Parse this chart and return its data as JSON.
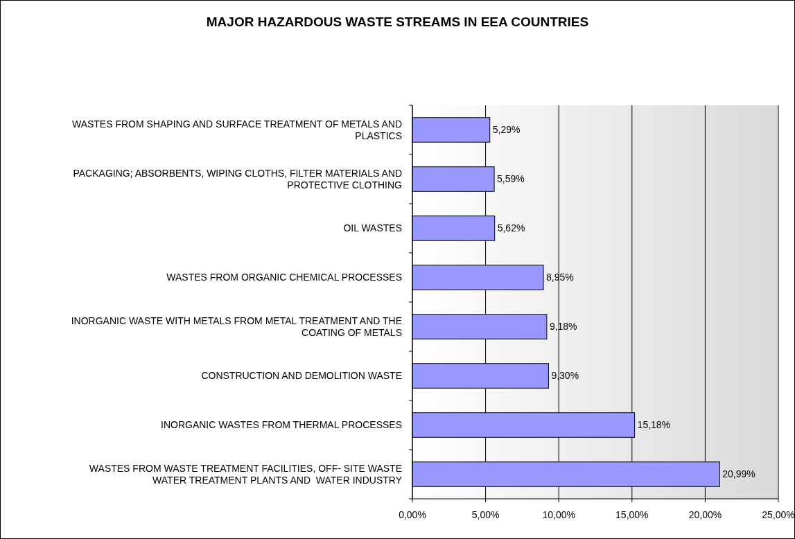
{
  "chart_data": {
    "type": "bar",
    "orientation": "horizontal",
    "title": "MAJOR HAZARDOUS WASTE STREAMS IN EEA COUNTRIES",
    "categories": [
      "WASTES FROM SHAPING AND SURFACE TREATMENT OF METALS AND PLASTICS",
      "PACKAGING; ABSORBENTS, WIPING CLOTHS, FILTER MATERIALS AND PROTECTIVE CLOTHING",
      "OIL WASTES",
      "WASTES FROM ORGANIC CHEMICAL PROCESSES",
      "INORGANIC WASTE WITH METALS FROM METAL TREATMENT AND THE COATING OF METALS",
      "CONSTRUCTION AND DEMOLITION WASTE",
      "INORGANIC WASTES FROM THERMAL PROCESSES",
      "WASTES FROM WASTE TREATMENT FACILITIES, OFF- SITE WASTE WATER TREATMENT PLANTS AND  WATER INDUSTRY"
    ],
    "values": [
      5.29,
      5.59,
      5.62,
      8.95,
      9.18,
      9.3,
      15.18,
      20.99
    ],
    "value_labels": [
      "5,29%",
      "5,59%",
      "5,62%",
      "8,95%",
      "9,18%",
      "9,30%",
      "15,18%",
      "20,99%"
    ],
    "color": "#9999ff",
    "xlim": [
      0,
      25
    ],
    "xticks": [
      {
        "value": 0,
        "label": "0,00%"
      },
      {
        "value": 5,
        "label": "5,00%"
      },
      {
        "value": 10,
        "label": "10,00%"
      },
      {
        "value": 15,
        "label": "15,00%"
      },
      {
        "value": 20,
        "label": "20,00%"
      },
      {
        "value": 25,
        "label": "25,00%"
      }
    ],
    "grid": "x"
  }
}
